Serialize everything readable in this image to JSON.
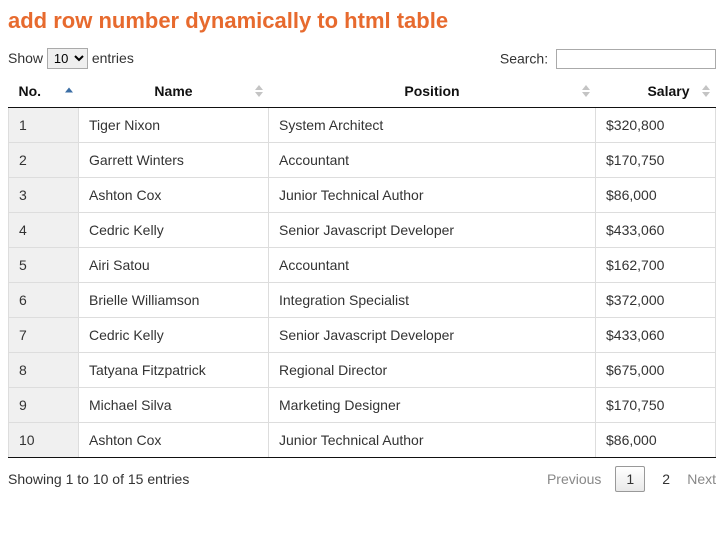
{
  "title": "add row number dynamically to html table",
  "length": {
    "show_label": "Show",
    "entries_label": "entries",
    "selected": "10"
  },
  "search": {
    "label": "Search:",
    "value": ""
  },
  "table": {
    "columns": {
      "no": "No.",
      "name": "Name",
      "position": "Position",
      "salary": "Salary"
    },
    "rows": [
      {
        "no": "1",
        "name": "Tiger Nixon",
        "position": "System Architect",
        "salary": "$320,800"
      },
      {
        "no": "2",
        "name": "Garrett Winters",
        "position": "Accountant",
        "salary": "$170,750"
      },
      {
        "no": "3",
        "name": "Ashton Cox",
        "position": "Junior Technical Author",
        "salary": "$86,000"
      },
      {
        "no": "4",
        "name": "Cedric Kelly",
        "position": "Senior Javascript Developer",
        "salary": "$433,060"
      },
      {
        "no": "5",
        "name": "Airi Satou",
        "position": "Accountant",
        "salary": "$162,700"
      },
      {
        "no": "6",
        "name": "Brielle Williamson",
        "position": "Integration Specialist",
        "salary": "$372,000"
      },
      {
        "no": "7",
        "name": "Cedric Kelly",
        "position": "Senior Javascript Developer",
        "salary": "$433,060"
      },
      {
        "no": "8",
        "name": "Tatyana Fitzpatrick",
        "position": "Regional Director",
        "salary": "$675,000"
      },
      {
        "no": "9",
        "name": "Michael Silva",
        "position": "Marketing Designer",
        "salary": "$170,750"
      },
      {
        "no": "10",
        "name": "Ashton Cox",
        "position": "Junior Technical Author",
        "salary": "$86,000"
      }
    ]
  },
  "info": "Showing 1 to 10 of 15 entries",
  "pagination": {
    "previous": "Previous",
    "next": "Next",
    "pages": [
      "1",
      "2"
    ],
    "current": "1"
  },
  "colors": {
    "title": "#e76a2e",
    "border": "#dddddd",
    "header_border": "#111111",
    "row_index_bg": "#f0f0f0",
    "sort_active": "#3b6ea5"
  }
}
